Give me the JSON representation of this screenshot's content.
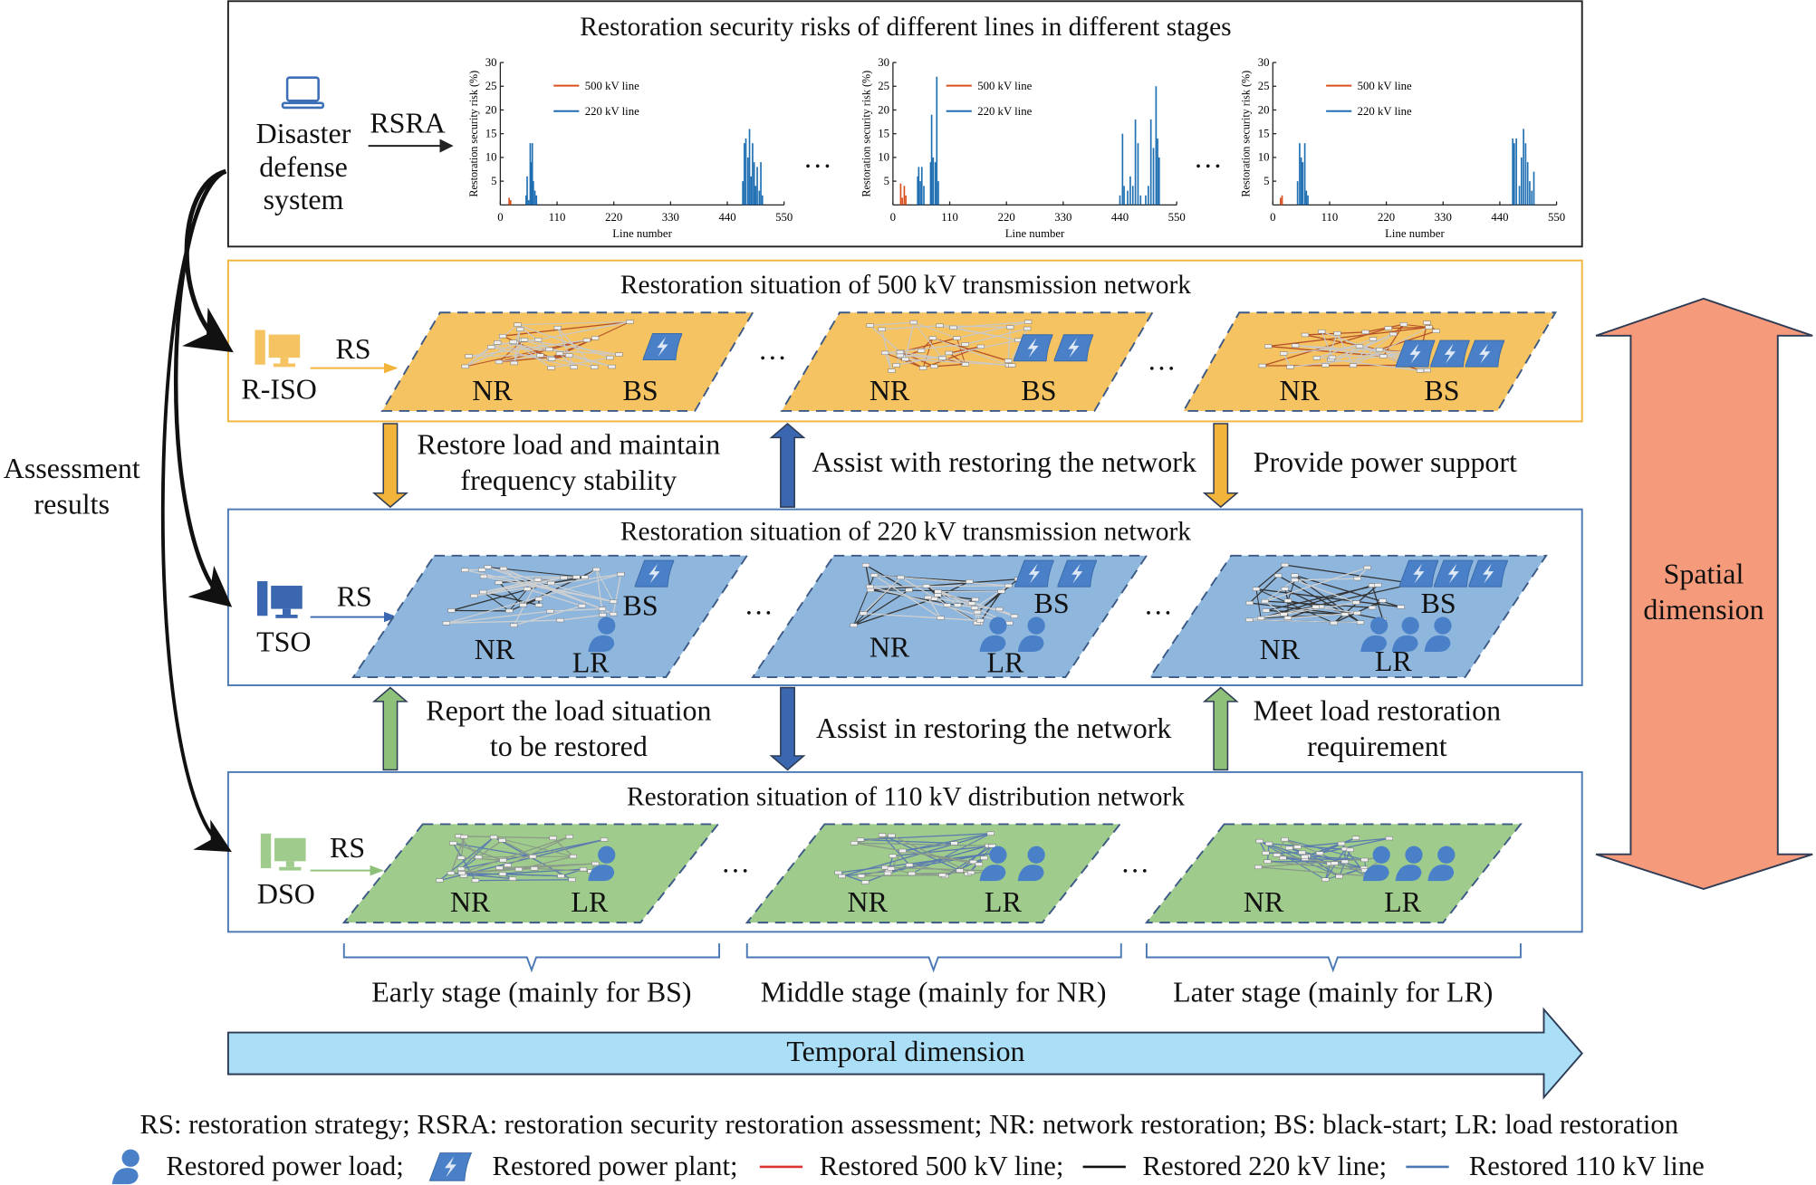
{
  "colors": {
    "panel_500kv": "#f5c361",
    "panel_220kv": "#8fb7dd",
    "panel_110kv": "#9fcb8c",
    "box_500kv_border": "#f2b53c",
    "box_border": "#4a78b5",
    "orange_arrow": "#f2b43a",
    "blue_arrow": "#3a67b0",
    "green_arrow": "#8fc07a",
    "spatial_arrow": "#f59a7b",
    "temporal_arrow": "#aadff7",
    "line_500kv": "#d9501e",
    "line_220kv": "#1f6fb2",
    "icon_blue": "#4a80c8"
  },
  "top": {
    "title": "Restoration security risks of different lines in different stages",
    "system_icon": "laptop-icon",
    "system_label": [
      "Disaster",
      "defense",
      "system"
    ],
    "arrow_label": "RSRA",
    "ellipsis": "…"
  },
  "chart_data": [
    {
      "type": "line",
      "xlabel": "Line number",
      "ylabel": "Restoration security risk (%)",
      "xlim": [
        0,
        550
      ],
      "ylim": [
        0,
        30
      ],
      "xticks": [
        0,
        110,
        220,
        330,
        440,
        550
      ],
      "yticks": [
        5,
        10,
        15,
        20,
        25,
        30
      ],
      "legend": "top-left",
      "series": [
        {
          "name": "500 kV line",
          "color": "#d9501e",
          "points": [
            [
              17,
              1.5
            ],
            [
              20,
              1
            ]
          ]
        },
        {
          "name": "220 kV line",
          "color": "#1f6fb2",
          "points": [
            [
              50,
              2
            ],
            [
              52,
              6
            ],
            [
              55,
              1
            ],
            [
              58,
              13
            ],
            [
              60,
              9
            ],
            [
              62,
              13
            ],
            [
              64,
              5
            ],
            [
              67,
              3
            ],
            [
              70,
              2
            ],
            [
              470,
              5
            ],
            [
              473,
              13
            ],
            [
              476,
              14
            ],
            [
              480,
              10
            ],
            [
              483,
              16
            ],
            [
              486,
              6
            ],
            [
              489,
              13
            ],
            [
              492,
              9
            ],
            [
              495,
              4
            ],
            [
              498,
              8
            ],
            [
              502,
              3
            ],
            [
              505,
              9
            ],
            [
              508,
              2
            ]
          ]
        }
      ]
    },
    {
      "type": "line",
      "xlabel": "Line number",
      "ylabel": "Restoration security risk (%)",
      "xlim": [
        0,
        550
      ],
      "ylim": [
        0,
        30
      ],
      "xticks": [
        0,
        110,
        220,
        330,
        440,
        550
      ],
      "yticks": [
        5,
        10,
        15,
        20,
        25,
        30
      ],
      "legend": "top-left",
      "series": [
        {
          "name": "500 kV line",
          "color": "#d9501e",
          "points": [
            [
              15,
              4.5
            ],
            [
              18,
              1.5
            ],
            [
              22,
              4
            ],
            [
              25,
              2
            ]
          ]
        },
        {
          "name": "220 kV line",
          "color": "#1f6fb2",
          "points": [
            [
              48,
              6
            ],
            [
              50,
              8
            ],
            [
              53,
              5
            ],
            [
              56,
              8
            ],
            [
              60,
              4
            ],
            [
              73,
              9
            ],
            [
              75,
              19
            ],
            [
              78,
              10
            ],
            [
              82,
              9
            ],
            [
              85,
              27
            ],
            [
              88,
              5
            ],
            [
              440,
              2
            ],
            [
              445,
              15
            ],
            [
              448,
              4
            ],
            [
              455,
              3
            ],
            [
              460,
              6
            ],
            [
              465,
              4
            ],
            [
              470,
              18
            ],
            [
              475,
              13
            ],
            [
              480,
              2
            ],
            [
              490,
              2
            ],
            [
              495,
              4
            ],
            [
              500,
              18
            ],
            [
              505,
              12
            ],
            [
              510,
              25
            ],
            [
              513,
              14
            ],
            [
              516,
              10
            ]
          ]
        }
      ]
    },
    {
      "type": "line",
      "xlabel": "Line number",
      "ylabel": "Restoration security risk (%)",
      "xlim": [
        0,
        550
      ],
      "ylim": [
        0,
        30
      ],
      "xticks": [
        0,
        110,
        220,
        330,
        440,
        550
      ],
      "yticks": [
        5,
        10,
        15,
        20,
        25,
        30
      ],
      "legend": "top-left",
      "series": [
        {
          "name": "500 kV line",
          "color": "#d9501e",
          "points": [
            [
              15,
              1.5
            ],
            [
              18,
              2
            ]
          ]
        },
        {
          "name": "220 kV line",
          "color": "#1f6fb2",
          "points": [
            [
              48,
              5
            ],
            [
              52,
              13
            ],
            [
              55,
              10
            ],
            [
              58,
              9
            ],
            [
              62,
              13
            ],
            [
              65,
              3
            ],
            [
              68,
              2
            ],
            [
              465,
              14
            ],
            [
              468,
              13
            ],
            [
              472,
              14
            ],
            [
              478,
              4
            ],
            [
              482,
              10
            ],
            [
              486,
              16
            ],
            [
              490,
              13
            ],
            [
              494,
              9
            ],
            [
              498,
              5
            ],
            [
              502,
              3
            ],
            [
              506,
              7
            ]
          ]
        }
      ]
    }
  ],
  "layers": [
    {
      "title": "Restoration situation of 500 kV transmission network",
      "operator": "R-ISO",
      "strategy": "RS",
      "icon": "computer-icon",
      "panels": [
        {
          "labels": [
            "NR",
            "BS"
          ],
          "plants": 1,
          "loads": 0
        },
        {
          "labels": [
            "NR",
            "BS"
          ],
          "plants": 2,
          "loads": 0
        },
        {
          "labels": [
            "NR",
            "BS"
          ],
          "plants": 3,
          "loads": 0
        }
      ]
    },
    {
      "title": "Restoration situation of 220 kV transmission network",
      "operator": "TSO",
      "strategy": "RS",
      "icon": "computer-icon",
      "panels": [
        {
          "labels": [
            "NR",
            "BS",
            "LR"
          ],
          "plants": 1,
          "loads": 1
        },
        {
          "labels": [
            "NR",
            "BS",
            "LR"
          ],
          "plants": 2,
          "loads": 2
        },
        {
          "labels": [
            "NR",
            "BS",
            "LR"
          ],
          "plants": 3,
          "loads": 3
        }
      ]
    },
    {
      "title": "Restoration situation of 110 kV distribution network",
      "operator": "DSO",
      "strategy": "RS",
      "icon": "computer-icon",
      "panels": [
        {
          "labels": [
            "NR",
            "LR"
          ],
          "plants": 0,
          "loads": 1
        },
        {
          "labels": [
            "NR",
            "LR"
          ],
          "plants": 0,
          "loads": 2
        },
        {
          "labels": [
            "NR",
            "LR"
          ],
          "plants": 0,
          "loads": 3
        }
      ]
    }
  ],
  "interactions_upper": [
    {
      "direction": "down",
      "color": "orange",
      "text": [
        "Restore load and maintain",
        "frequency stability"
      ]
    },
    {
      "direction": "up",
      "color": "blue",
      "text": [
        "Assist with restoring the network"
      ]
    },
    {
      "direction": "down",
      "color": "orange",
      "text": [
        "Provide power support"
      ]
    }
  ],
  "interactions_lower": [
    {
      "direction": "up",
      "color": "green",
      "text": [
        "Report the load situation",
        "to be restored"
      ]
    },
    {
      "direction": "down",
      "color": "blue",
      "text": [
        "Assist in restoring the network"
      ]
    },
    {
      "direction": "up",
      "color": "green",
      "text": [
        "Meet load restoration",
        "requirement"
      ]
    }
  ],
  "assessment": [
    "Assessment",
    "results"
  ],
  "stages": [
    "Early stage (mainly for BS)",
    "Middle stage (mainly for NR)",
    "Later stage (mainly for LR)"
  ],
  "temporal": "Temporal dimension",
  "spatial": [
    "Spatial",
    "dimension"
  ],
  "legend": {
    "abbreviations": "RS: restoration strategy; RSRA: restoration security restoration assessment; NR: network restoration; BS: black-start; LR: load restoration",
    "load": "Restored power load;",
    "plant": "Restored power plant;",
    "line500": "Restored 500 kV line;",
    "line220": "Restored 220 kV line;",
    "line110": "Restored 110 kV line"
  }
}
